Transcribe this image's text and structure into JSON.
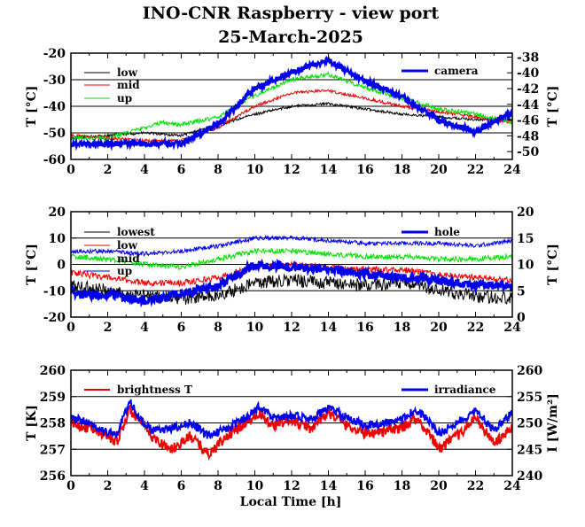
{
  "title": "INO-CNR Raspberry - view port",
  "subtitle": "25-March-2025",
  "colors": {
    "black": "#000000",
    "red": "#ee0000",
    "green": "#00dd00",
    "blue": "#0000ee"
  },
  "chart_data": [
    {
      "type": "line",
      "xlabel": "",
      "ylabel_left": "T [°C]",
      "ylabel_right": "T [°C]",
      "xlim": [
        0,
        24
      ],
      "ylim_left": [
        -60,
        -20
      ],
      "ylim_right": [
        -51,
        -37.5
      ],
      "x_ticks": [
        "0",
        "2",
        "4",
        "6",
        "8",
        "10",
        "12",
        "14",
        "16",
        "18",
        "20",
        "22",
        "24"
      ],
      "y_ticks_left": [
        "-60",
        "-50",
        "-40",
        "-30",
        "-20"
      ],
      "y_ticks_right": [
        "-50",
        "-48",
        "-46",
        "-44",
        "-42",
        "-40",
        "-38"
      ],
      "grid": "horizontal",
      "legend_left": [
        "low",
        "mid",
        "up"
      ],
      "legend_right": [
        "camera"
      ],
      "series": [
        {
          "name": "low",
          "axis": "left",
          "color": "#000000",
          "width": 1,
          "noise": 0.5,
          "x": [
            0,
            2,
            4,
            6,
            8,
            10,
            12,
            14,
            16,
            18,
            20,
            22,
            24
          ],
          "values": [
            -52,
            -51,
            -50,
            -51,
            -47,
            -43,
            -40,
            -39,
            -41,
            -43,
            -44,
            -45,
            -45
          ]
        },
        {
          "name": "mid",
          "axis": "left",
          "color": "#ee0000",
          "width": 1,
          "noise": 0.6,
          "x": [
            0,
            2,
            4,
            6,
            8,
            10,
            12,
            14,
            16,
            18,
            20,
            22,
            24
          ],
          "values": [
            -51,
            -52,
            -53,
            -53,
            -48,
            -40,
            -35,
            -34,
            -37,
            -40,
            -42,
            -44,
            -46
          ]
        },
        {
          "name": "up",
          "axis": "left",
          "color": "#00dd00",
          "width": 1,
          "noise": 0.8,
          "x": [
            0,
            2,
            4,
            5,
            6,
            8,
            10,
            12,
            14,
            16,
            18,
            20,
            22,
            24
          ],
          "values": [
            -52,
            -52,
            -48,
            -46,
            -47,
            -44,
            -36,
            -30,
            -28,
            -33,
            -37,
            -41,
            -43,
            -46
          ]
        },
        {
          "name": "camera",
          "axis": "right",
          "color": "#0000ee",
          "width": 3,
          "noise": 0.35,
          "x": [
            0,
            2,
            4,
            6,
            8,
            10,
            12,
            13,
            14,
            16,
            18,
            20,
            22,
            24
          ],
          "values": [
            -49,
            -49,
            -49,
            -49,
            -46.5,
            -42,
            -40,
            -39,
            -38.5,
            -41,
            -43,
            -46,
            -47.5,
            -45
          ]
        }
      ]
    },
    {
      "type": "line",
      "xlabel": "",
      "ylabel_left": "T [°C]",
      "ylabel_right": "T [°C]",
      "xlim": [
        0,
        24
      ],
      "ylim_left": [
        -20,
        20
      ],
      "ylim_right": [
        0,
        20
      ],
      "x_ticks": [
        "0",
        "2",
        "4",
        "6",
        "8",
        "10",
        "12",
        "14",
        "16",
        "18",
        "20",
        "22",
        "24"
      ],
      "y_ticks_left": [
        "-20",
        "-10",
        "0",
        "10",
        "20"
      ],
      "y_ticks_right": [
        "0",
        "5",
        "10",
        "15",
        "20"
      ],
      "grid": "horizontal",
      "legend_left": [
        "lowest",
        "low",
        "mid",
        "up"
      ],
      "legend_right": [
        "hole"
      ],
      "series": [
        {
          "name": "lowest",
          "axis": "left",
          "color": "#000000",
          "width": 1,
          "noise": 2.5,
          "x": [
            0,
            2,
            4,
            6,
            8,
            10,
            12,
            14,
            16,
            18,
            20,
            22,
            24
          ],
          "values": [
            -8,
            -10,
            -12,
            -13,
            -12,
            -7,
            -6,
            -7,
            -8,
            -7,
            -10,
            -12,
            -13
          ]
        },
        {
          "name": "low",
          "axis": "left",
          "color": "#ee0000",
          "width": 1,
          "noise": 1.2,
          "x": [
            0,
            2,
            4,
            6,
            8,
            10,
            12,
            14,
            16,
            18,
            20,
            22,
            24
          ],
          "values": [
            -3,
            -5,
            -7,
            -7,
            -5,
            -1,
            0,
            -1,
            -2,
            -2,
            -4,
            -5,
            -6
          ]
        },
        {
          "name": "mid",
          "axis": "left",
          "color": "#00dd00",
          "width": 1,
          "noise": 1.0,
          "x": [
            0,
            2,
            4,
            6,
            8,
            10,
            12,
            14,
            16,
            18,
            20,
            22,
            24
          ],
          "values": [
            3,
            2,
            0,
            -1,
            2,
            5,
            5,
            4,
            3,
            3,
            2,
            2,
            3
          ]
        },
        {
          "name": "up",
          "axis": "left",
          "color": "#0000ee",
          "width": 1,
          "noise": 0.8,
          "x": [
            0,
            2,
            4,
            6,
            8,
            10,
            12,
            14,
            16,
            18,
            20,
            22,
            24
          ],
          "values": [
            5,
            5,
            4,
            5,
            7,
            10,
            10,
            9,
            8,
            8,
            8,
            7,
            9
          ]
        },
        {
          "name": "hole",
          "axis": "right",
          "color": "#0000ee",
          "width": 3,
          "noise": 0.8,
          "x": [
            0,
            1,
            2,
            4,
            6,
            8,
            10,
            12,
            14,
            16,
            18,
            20,
            22,
            24
          ],
          "values": [
            5,
            4,
            4.5,
            3,
            4.5,
            6,
            10,
            9.5,
            9,
            8,
            7.5,
            7,
            6,
            6
          ]
        }
      ]
    },
    {
      "type": "line",
      "xlabel": "Local Time [h]",
      "ylabel_left": "T [K]",
      "ylabel_right": "I [W/m²]",
      "xlim": [
        0,
        24
      ],
      "ylim_left": [
        256,
        260
      ],
      "ylim_right": [
        240,
        260
      ],
      "x_ticks": [
        "0",
        "2",
        "4",
        "6",
        "8",
        "10",
        "12",
        "14",
        "16",
        "18",
        "20",
        "22",
        "24"
      ],
      "y_ticks_left": [
        "256",
        "257",
        "258",
        "259",
        "260"
      ],
      "y_ticks_right": [
        "240",
        "245",
        "250",
        "255",
        "260"
      ],
      "grid": "horizontal",
      "legend_left": [
        "brightness T"
      ],
      "legend_right": [
        "irradiance"
      ],
      "series": [
        {
          "name": "brightness T",
          "axis": "left",
          "color": "#ee0000",
          "width": 2,
          "noise": 0.2,
          "x": [
            0,
            1,
            2,
            2.5,
            3.2,
            3.8,
            4.5,
            5.5,
            6.5,
            7.5,
            8.5,
            9.5,
            10.2,
            11,
            12,
            13,
            14,
            15,
            16,
            17,
            18,
            18.7,
            19.5,
            20,
            21,
            22,
            23,
            24
          ],
          "values": [
            258,
            257.8,
            257.5,
            257.3,
            258.5,
            258,
            257.4,
            257,
            257.5,
            256.8,
            257.5,
            258,
            258.4,
            257.9,
            258.1,
            257.8,
            258.4,
            257.9,
            257.6,
            257.7,
            257.8,
            258.2,
            257.6,
            257,
            257.5,
            258.2,
            257.2,
            257.8
          ]
        },
        {
          "name": "irradiance",
          "axis": "right",
          "color": "#0000ee",
          "width": 2,
          "noise": 0.8,
          "x": [
            0,
            1,
            2,
            2.5,
            3.2,
            3.8,
            4.5,
            5.5,
            6.5,
            7.5,
            8.5,
            9.5,
            10.2,
            11,
            12,
            13,
            14,
            15,
            16,
            17,
            18,
            18.7,
            19.5,
            20,
            21,
            22,
            23,
            24
          ],
          "values": [
            251,
            250,
            248,
            248,
            254,
            250.5,
            248.5,
            249,
            250,
            247.5,
            249,
            251,
            253,
            251,
            251.5,
            250.5,
            253,
            251,
            249.5,
            250,
            250.5,
            252.5,
            250.5,
            248,
            250,
            252.5,
            248.5,
            252
          ]
        }
      ]
    }
  ]
}
